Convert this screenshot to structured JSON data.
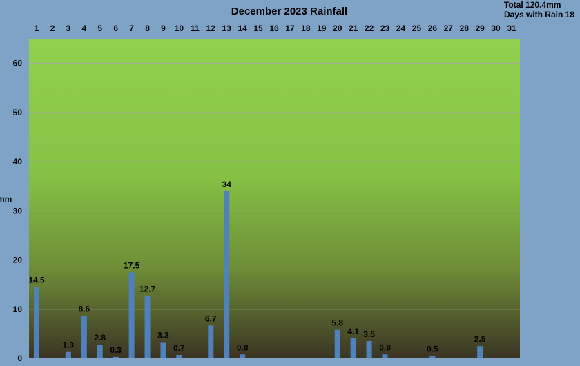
{
  "chart_data": {
    "type": "bar",
    "title": "December 2023 Rainfall",
    "ylabel": "mm",
    "ylim": [
      0,
      65
    ],
    "yticks": [
      0,
      10,
      20,
      30,
      40,
      50,
      60
    ],
    "categories": [
      "1",
      "2",
      "3",
      "4",
      "5",
      "6",
      "7",
      "8",
      "9",
      "10",
      "11",
      "12",
      "13",
      "14",
      "15",
      "16",
      "17",
      "18",
      "19",
      "20",
      "21",
      "22",
      "23",
      "24",
      "25",
      "26",
      "27",
      "28",
      "29",
      "30",
      "31"
    ],
    "values": [
      14.5,
      0,
      1.3,
      8.6,
      2.8,
      0.3,
      17.5,
      12.7,
      3.3,
      0.7,
      0,
      6.7,
      34,
      0.8,
      0,
      0,
      0,
      0,
      0,
      5.8,
      4.1,
      3.5,
      0.8,
      0,
      0,
      0.5,
      0,
      0,
      2.5,
      0,
      0
    ],
    "data_labels": [
      "14.5",
      "",
      "1.3",
      "8.6",
      "2.8",
      "0.3",
      "17.5",
      "12.7",
      "3.3",
      "0.7",
      "",
      "6.7",
      "34",
      "0.8",
      "",
      "",
      "",
      "",
      "",
      "5.8",
      "4.1",
      "3.5",
      "0.8",
      "",
      "",
      "0.5",
      "",
      "",
      "2.5",
      "",
      ""
    ],
    "grid": true,
    "x_axis_position": "top",
    "colors": {
      "bar": "#4f81bd",
      "plot_top": "#92d050",
      "plot_bottom": "#3b3424",
      "background": "#7fa3c6",
      "grid": "#a6a6a6"
    }
  },
  "summary": {
    "total": "Total 120.4mm",
    "days_with_rain": "Days with Rain 18"
  }
}
